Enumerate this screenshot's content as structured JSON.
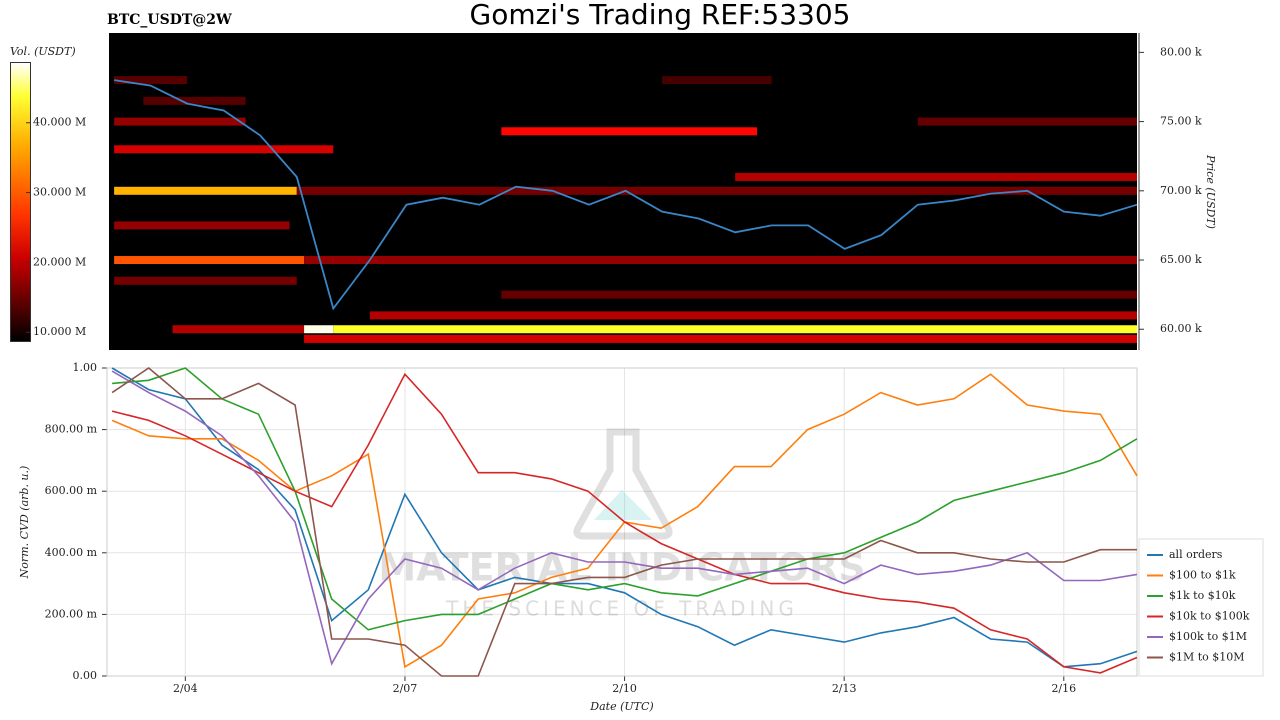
{
  "chart_data": [
    {
      "type": "heatmap",
      "title": "Gomzi's Trading REF:53305",
      "subtitle": "BTC_USDT@2W",
      "y_label": "Price (USDT)",
      "colorbar_label": "Vol. (USDT)",
      "colormap": "hot",
      "xlim": [
        2.93,
        17.0
      ],
      "ylim": [
        58500,
        81400
      ],
      "yticks": [
        {
          "value": 60000,
          "label": "60.00 k"
        },
        {
          "value": 65000,
          "label": "65.00 k"
        },
        {
          "value": 70000,
          "label": "70.00 k"
        },
        {
          "value": 75000,
          "label": "75.00 k"
        },
        {
          "value": 80000,
          "label": "80.00 k"
        }
      ],
      "clim": [
        8600000,
        48700000
      ],
      "cticks": [
        {
          "value": 10000000,
          "label": "10.000 M"
        },
        {
          "value": 20000000,
          "label": "20.000 M"
        },
        {
          "value": 30000000,
          "label": "30.000 M"
        },
        {
          "value": 40000000,
          "label": "40.000 M"
        }
      ],
      "bands": [
        {
          "price": 60000,
          "start": 3.8,
          "end": 5.6,
          "volume": 20000000
        },
        {
          "price": 60000,
          "start": 5.6,
          "end": 6.0,
          "volume": 48000000
        },
        {
          "price": 60000,
          "start": 6.0,
          "end": 17.0,
          "volume": 42000000
        },
        {
          "price": 59300,
          "start": 5.6,
          "end": 17.0,
          "volume": 22000000
        },
        {
          "price": 61000,
          "start": 6.5,
          "end": 17.0,
          "volume": 20000000
        },
        {
          "price": 62500,
          "start": 8.3,
          "end": 17.0,
          "volume": 15000000
        },
        {
          "price": 63500,
          "start": 3.0,
          "end": 5.5,
          "volume": 16000000
        },
        {
          "price": 65000,
          "start": 3.0,
          "end": 5.6,
          "volume": 30000000
        },
        {
          "price": 65000,
          "start": 5.6,
          "end": 17.0,
          "volume": 18000000
        },
        {
          "price": 67500,
          "start": 3.0,
          "end": 5.4,
          "volume": 18000000
        },
        {
          "price": 70000,
          "start": 3.0,
          "end": 5.5,
          "volume": 36000000
        },
        {
          "price": 70000,
          "start": 5.5,
          "end": 17.0,
          "volume": 16000000
        },
        {
          "price": 71000,
          "start": 11.5,
          "end": 17.0,
          "volume": 20000000
        },
        {
          "price": 73000,
          "start": 3.0,
          "end": 6.0,
          "volume": 22000000
        },
        {
          "price": 74300,
          "start": 8.3,
          "end": 11.8,
          "volume": 25000000
        },
        {
          "price": 75000,
          "start": 3.0,
          "end": 4.8,
          "volume": 18000000
        },
        {
          "price": 75000,
          "start": 14.0,
          "end": 17.0,
          "volume": 15000000
        },
        {
          "price": 76500,
          "start": 3.4,
          "end": 4.8,
          "volume": 14000000
        },
        {
          "price": 78000,
          "start": 3.0,
          "end": 4.0,
          "volume": 14000000
        },
        {
          "price": 78000,
          "start": 10.5,
          "end": 12.0,
          "volume": 13000000
        }
      ],
      "x": [
        3,
        3.5,
        4,
        4.5,
        5,
        5.5,
        6,
        6.5,
        7,
        7.5,
        8,
        8.5,
        9,
        9.5,
        10,
        10.5,
        11,
        11.5,
        12,
        12.5,
        13,
        13.5,
        14,
        14.5,
        15,
        15.5,
        16,
        16.5,
        17
      ],
      "price": {
        "color": "#3a86c8",
        "values": [
          78000,
          77600,
          76300,
          75800,
          74000,
          71000,
          61500,
          65000,
          69000,
          69500,
          69000,
          70300,
          70000,
          69000,
          70000,
          68500,
          68000,
          67000,
          67500,
          67500,
          65800,
          66800,
          69000,
          69300,
          69800,
          70000,
          68500,
          68200,
          69000
        ]
      }
    },
    {
      "type": "line",
      "x_label": "Date (UTC)",
      "y_label": "Norm. CVD (arb. u.)",
      "watermark": [
        "MATERIAL INDICATORS",
        "THE SCIENCE OF TRADING"
      ],
      "grid": true,
      "legend": "lower right",
      "xlim": [
        2.93,
        17.0
      ],
      "xticks": [
        {
          "value": 4,
          "label": "2/04"
        },
        {
          "value": 7,
          "label": "2/07"
        },
        {
          "value": 10,
          "label": "2/10"
        },
        {
          "value": 13,
          "label": "2/13"
        },
        {
          "value": 16,
          "label": "2/16"
        }
      ],
      "ylim": [
        0,
        1
      ],
      "yticks": [
        {
          "value": 0,
          "label": "0.00"
        },
        {
          "value": 0.2,
          "label": "200.00 m"
        },
        {
          "value": 0.4,
          "label": "400.00 m"
        },
        {
          "value": 0.6,
          "label": "600.00 m"
        },
        {
          "value": 0.8,
          "label": "800.00 m"
        },
        {
          "value": 1,
          "label": "1.00"
        }
      ],
      "x": [
        3,
        3.5,
        4,
        4.5,
        5,
        5.5,
        6,
        6.5,
        7,
        7.5,
        8,
        8.5,
        9,
        9.5,
        10,
        10.5,
        11,
        11.5,
        12,
        12.5,
        13,
        13.5,
        14,
        14.5,
        15,
        15.5,
        16,
        16.5,
        17
      ],
      "series": [
        {
          "name": "all orders",
          "color": "#1f77b4",
          "values": [
            1.0,
            0.93,
            0.9,
            0.75,
            0.67,
            0.54,
            0.18,
            0.28,
            0.59,
            0.4,
            0.28,
            0.32,
            0.3,
            0.3,
            0.27,
            0.2,
            0.16,
            0.1,
            0.15,
            0.13,
            0.11,
            0.14,
            0.16,
            0.19,
            0.12,
            0.11,
            0.03,
            0.04,
            0.08
          ]
        },
        {
          "name": "$100 to $1k",
          "color": "#ff7f0e",
          "values": [
            0.83,
            0.78,
            0.77,
            0.77,
            0.7,
            0.6,
            0.65,
            0.72,
            0.03,
            0.1,
            0.25,
            0.27,
            0.32,
            0.35,
            0.5,
            0.48,
            0.55,
            0.68,
            0.68,
            0.8,
            0.85,
            0.92,
            0.88,
            0.9,
            0.98,
            0.88,
            0.86,
            0.85,
            0.65
          ]
        },
        {
          "name": "$1k to $10k",
          "color": "#2ca02c",
          "values": [
            0.95,
            0.96,
            1.0,
            0.9,
            0.85,
            0.6,
            0.25,
            0.15,
            0.18,
            0.2,
            0.2,
            0.25,
            0.3,
            0.28,
            0.3,
            0.27,
            0.26,
            0.3,
            0.34,
            0.38,
            0.4,
            0.45,
            0.5,
            0.57,
            0.6,
            0.63,
            0.66,
            0.7,
            0.77
          ]
        },
        {
          "name": "$10k to $100k",
          "color": "#d62728",
          "values": [
            0.86,
            0.83,
            0.78,
            0.72,
            0.66,
            0.6,
            0.55,
            0.75,
            0.98,
            0.85,
            0.66,
            0.66,
            0.64,
            0.6,
            0.5,
            0.43,
            0.38,
            0.33,
            0.3,
            0.3,
            0.27,
            0.25,
            0.24,
            0.22,
            0.15,
            0.12,
            0.03,
            0.01,
            0.06
          ]
        },
        {
          "name": "$100k to $1M",
          "color": "#9467bd",
          "values": [
            0.99,
            0.92,
            0.86,
            0.78,
            0.65,
            0.5,
            0.04,
            0.25,
            0.38,
            0.35,
            0.28,
            0.35,
            0.4,
            0.37,
            0.37,
            0.35,
            0.35,
            0.33,
            0.34,
            0.35,
            0.3,
            0.36,
            0.33,
            0.34,
            0.36,
            0.4,
            0.31,
            0.31,
            0.33
          ]
        },
        {
          "name": "$1M to $10M",
          "color": "#8c564b",
          "values": [
            0.92,
            1.0,
            0.9,
            0.9,
            0.95,
            0.88,
            0.12,
            0.12,
            0.1,
            0.0,
            0.0,
            0.3,
            0.3,
            0.32,
            0.32,
            0.36,
            0.38,
            0.38,
            0.38,
            0.38,
            0.38,
            0.44,
            0.4,
            0.4,
            0.38,
            0.37,
            0.37,
            0.41,
            0.41
          ]
        }
      ]
    }
  ]
}
